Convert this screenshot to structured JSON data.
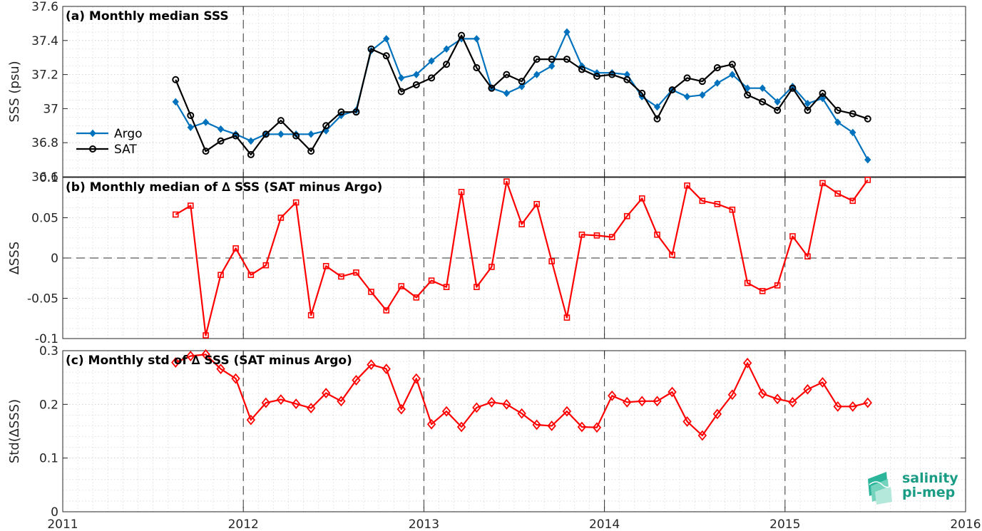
{
  "colors": {
    "argo": "#0072BD",
    "sat": "#000000",
    "red": "#FF0000",
    "logo": "#1B9C85"
  },
  "x_tick_labels": [
    "2011",
    "2012",
    "2013",
    "2014",
    "2015",
    "2016"
  ],
  "logo": {
    "line1": "salinity",
    "line2": "pi-mep"
  },
  "chart_data": [
    {
      "type": "line",
      "title": "(a) Monthly median SSS",
      "ylabel": "SSS (psu)",
      "xlim": [
        2011,
        2016
      ],
      "ylim": [
        36.6,
        37.6
      ],
      "yticks": [
        36.6,
        36.8,
        37,
        37.2,
        37.4,
        37.6
      ],
      "ytick_labels": [
        "36.6",
        "36.8",
        "37",
        "37.2",
        "37.4",
        "37.6"
      ],
      "grid": true,
      "legend_position": "bottom-left",
      "year_vlines": [
        2012,
        2013,
        2014,
        2015
      ],
      "x": [
        2011.625,
        2011.708,
        2011.792,
        2011.875,
        2011.958,
        2012.042,
        2012.125,
        2012.208,
        2012.292,
        2012.375,
        2012.458,
        2012.542,
        2012.625,
        2012.708,
        2012.792,
        2012.875,
        2012.958,
        2013.042,
        2013.125,
        2013.208,
        2013.292,
        2013.375,
        2013.458,
        2013.542,
        2013.625,
        2013.708,
        2013.792,
        2013.875,
        2013.958,
        2014.042,
        2014.125,
        2014.208,
        2014.292,
        2014.375,
        2014.458,
        2014.542,
        2014.625,
        2014.708,
        2014.792,
        2014.875,
        2014.958,
        2015.042,
        2015.125,
        2015.208,
        2015.292,
        2015.375,
        2015.458
      ],
      "series": [
        {
          "name": "Argo",
          "marker": "diamond-filled",
          "values": [
            37.04,
            36.89,
            36.92,
            36.88,
            36.85,
            36.81,
            36.85,
            36.85,
            36.85,
            36.85,
            36.87,
            36.96,
            36.99,
            37.34,
            37.41,
            37.18,
            37.2,
            37.28,
            37.35,
            37.41,
            37.41,
            37.12,
            37.09,
            37.13,
            37.2,
            37.25,
            37.45,
            37.25,
            37.21,
            37.21,
            37.2,
            37.07,
            37.01,
            37.11,
            37.07,
            37.08,
            37.15,
            37.2,
            37.12,
            37.12,
            37.04,
            37.13,
            37.03,
            37.06,
            36.92,
            36.86,
            36.7
          ]
        },
        {
          "name": "SAT",
          "marker": "circle-open",
          "values": [
            37.17,
            36.96,
            36.75,
            36.81,
            36.84,
            36.73,
            36.85,
            36.93,
            36.84,
            36.75,
            36.9,
            36.98,
            36.98,
            37.35,
            37.31,
            37.1,
            37.14,
            37.18,
            37.26,
            37.43,
            37.24,
            37.12,
            37.2,
            37.16,
            37.29,
            37.29,
            37.29,
            37.23,
            37.19,
            37.2,
            37.17,
            37.09,
            36.94,
            37.11,
            37.18,
            37.16,
            37.24,
            37.26,
            37.08,
            37.04,
            36.99,
            37.12,
            36.99,
            37.09,
            36.99,
            36.97,
            36.94
          ]
        }
      ]
    },
    {
      "type": "line",
      "title": "(b) Monthly median of ∆ SSS (SAT minus Argo)",
      "ylabel": "∆SSS",
      "xlim": [
        2011,
        2016
      ],
      "ylim": [
        -0.1,
        0.1
      ],
      "yticks": [
        -0.1,
        -0.05,
        0,
        0.05,
        0.1
      ],
      "ytick_labels": [
        "-0.1",
        "-0.05",
        "0",
        "0.05",
        "0.1"
      ],
      "grid": true,
      "zero_line": true,
      "year_vlines": [
        2012,
        2013,
        2014,
        2015
      ],
      "x": [
        2011.625,
        2011.708,
        2011.792,
        2011.875,
        2011.958,
        2012.042,
        2012.125,
        2012.208,
        2012.292,
        2012.375,
        2012.458,
        2012.542,
        2012.625,
        2012.708,
        2012.792,
        2012.875,
        2012.958,
        2013.042,
        2013.125,
        2013.208,
        2013.292,
        2013.375,
        2013.458,
        2013.542,
        2013.625,
        2013.708,
        2013.792,
        2013.875,
        2013.958,
        2014.042,
        2014.125,
        2014.208,
        2014.292,
        2014.375,
        2014.458,
        2014.542,
        2014.625,
        2014.708,
        2014.792,
        2014.875,
        2014.958,
        2015.042,
        2015.125,
        2015.208,
        2015.292,
        2015.375,
        2015.458
      ],
      "series": [
        {
          "marker": "square-open",
          "values": [
            0.054,
            0.065,
            -0.096,
            -0.021,
            0.012,
            -0.021,
            -0.009,
            0.05,
            0.069,
            -0.071,
            -0.01,
            -0.023,
            -0.018,
            -0.042,
            -0.065,
            -0.035,
            -0.049,
            -0.028,
            -0.036,
            0.082,
            -0.036,
            -0.011,
            0.095,
            0.042,
            0.067,
            -0.004,
            -0.074,
            0.029,
            0.028,
            0.026,
            0.052,
            0.074,
            0.029,
            0.004,
            0.09,
            0.071,
            0.067,
            0.06,
            -0.031,
            -0.041,
            -0.034,
            0.027,
            0.002,
            0.093,
            0.08,
            0.071,
            0.097
          ]
        }
      ]
    },
    {
      "type": "line",
      "title": "(c) Monthly std of ∆ SSS (SAT minus Argo)",
      "ylabel": "Std(∆SSS)",
      "xlim": [
        2011,
        2016
      ],
      "ylim": [
        0,
        0.3
      ],
      "yticks": [
        0,
        0.1,
        0.2,
        0.3
      ],
      "ytick_labels": [
        "0",
        "0.1",
        "0.2",
        "0.3"
      ],
      "grid": true,
      "year_vlines": [
        2012,
        2013,
        2014,
        2015
      ],
      "x": [
        2011.625,
        2011.708,
        2011.792,
        2011.875,
        2011.958,
        2012.042,
        2012.125,
        2012.208,
        2012.292,
        2012.375,
        2012.458,
        2012.542,
        2012.625,
        2012.708,
        2012.792,
        2012.875,
        2012.958,
        2013.042,
        2013.125,
        2013.208,
        2013.292,
        2013.375,
        2013.458,
        2013.542,
        2013.625,
        2013.708,
        2013.792,
        2013.875,
        2013.958,
        2014.042,
        2014.125,
        2014.208,
        2014.292,
        2014.375,
        2014.458,
        2014.542,
        2014.625,
        2014.708,
        2014.792,
        2014.875,
        2014.958,
        2015.042,
        2015.125,
        2015.208,
        2015.292,
        2015.375,
        2015.458
      ],
      "series": [
        {
          "marker": "diamond-open",
          "values": [
            0.278,
            0.29,
            0.293,
            0.266,
            0.248,
            0.171,
            0.203,
            0.209,
            0.201,
            0.193,
            0.221,
            0.206,
            0.245,
            0.274,
            0.266,
            0.191,
            0.248,
            0.163,
            0.187,
            0.158,
            0.194,
            0.204,
            0.2,
            0.183,
            0.162,
            0.16,
            0.187,
            0.158,
            0.157,
            0.216,
            0.204,
            0.206,
            0.206,
            0.223,
            0.168,
            0.142,
            0.182,
            0.218,
            0.277,
            0.22,
            0.21,
            0.204,
            0.228,
            0.241,
            0.196,
            0.196,
            0.203
          ]
        }
      ]
    }
  ]
}
